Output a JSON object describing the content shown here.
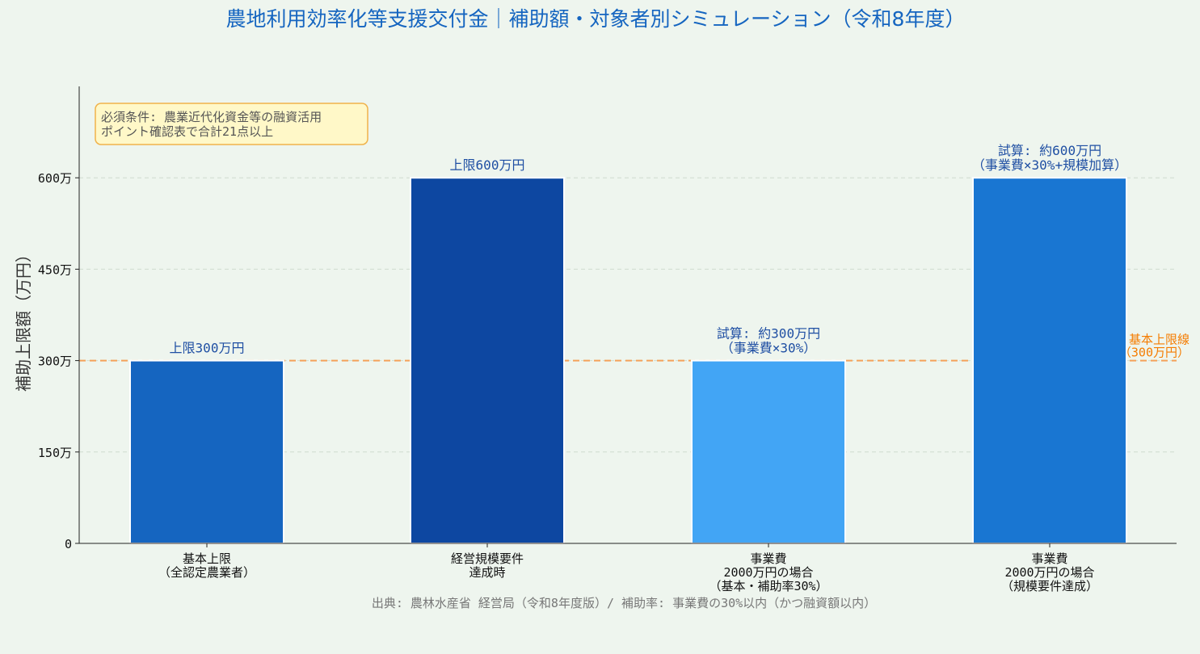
{
  "chart_data": {
    "type": "bar",
    "title": "農地利用効率化等支援交付金｜補助額・対象者別シミュレーション（令和8年度）",
    "ylabel": "補助上限額（万円）",
    "ylim": [
      0,
      750
    ],
    "yticks": [
      {
        "value": 0,
        "label": "0"
      },
      {
        "value": 150,
        "label": "150万"
      },
      {
        "value": 300,
        "label": "300万"
      },
      {
        "value": 450,
        "label": "450万"
      },
      {
        "value": 600,
        "label": "600万"
      }
    ],
    "grid": true,
    "categories": [
      [
        "基本上限",
        "（全認定農業者）"
      ],
      [
        "経営規模要件",
        "達成時"
      ],
      [
        "事業費",
        "2000万円の場合",
        "（基本・補助率30%）"
      ],
      [
        "事業費",
        "2000万円の場合",
        "（規模要件達成）"
      ]
    ],
    "values": [
      300,
      600,
      300,
      600
    ],
    "colors": [
      "#1565c0",
      "#0d47a1",
      "#42a5f5",
      "#1976d2"
    ],
    "data_labels": [
      [
        "上限300万円"
      ],
      [
        "上限600万円"
      ],
      [
        "試算: 約300万円",
        "（事業費×30%）"
      ],
      [
        "試算: 約600万円",
        "（事業費×30%+規模加算）"
      ]
    ],
    "reference_line": {
      "value": 300,
      "color": "#f4a15a",
      "label": [
        "基本上限線",
        "（300万円）"
      ],
      "label_color": "#f57c00"
    },
    "annotation": {
      "lines": [
        "必須条件: 農業近代化資金等の融資活用",
        "ポイント確認表で合計21点以上"
      ],
      "position": "top-left"
    },
    "source": "出典: 農林水産省 経営局（令和8年度版）/ 補助率: 事業費の30%以内（かつ融資額以内）"
  },
  "colors": {
    "background": "#eef5ee",
    "title": "#1565c0",
    "label_text": "#1f4fa3",
    "axis": "#222222",
    "grid": "#cfdccf",
    "note_fill": "#fff8c8",
    "note_border": "#f0b24a",
    "source_text": "#777777"
  }
}
